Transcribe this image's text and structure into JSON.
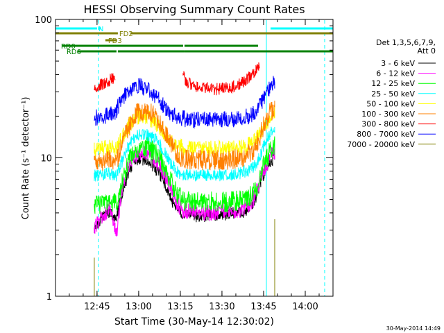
{
  "chart_data": {
    "type": "line",
    "title": "HESSI Observing Summary Count Rates",
    "xlabel": "Start Time (30-May-14 12:30:02)",
    "ylabel": "Count Rate (s⁻¹ detector⁻¹)",
    "ylim": [
      1,
      100
    ],
    "yscale": "log",
    "xlim": [
      "12:30:02",
      "14:10:00"
    ],
    "x_ticks": [
      "12:45",
      "13:00",
      "13:15",
      "13:30",
      "13:45",
      "14:00"
    ],
    "y_ticks": [
      "1",
      "10",
      "100"
    ],
    "legend_header": [
      "Det 1,3,5,6,7,9,",
      "Att 0"
    ],
    "legend_position": "right",
    "timestamp": "30-May-2014 14:49",
    "series": [
      {
        "name": "3 - 6 keV",
        "color": "#000000",
        "segments": [
          {
            "x": [
              "12:44:00",
              "12:46:30",
              "12:49:00",
              "12:52:00",
              "12:54:00",
              "12:56:00",
              "12:58:00",
              "13:00:00",
              "13:02:00",
              "13:04:00",
              "13:06:00",
              "13:08:00",
              "13:10:00",
              "13:12:00",
              "13:14:00",
              "13:16:00",
              "13:18:00",
              "13:20:00",
              "13:22:00",
              "13:24:00",
              "13:26:00",
              "13:28:00",
              "13:30:00",
              "13:32:00",
              "13:34:00",
              "13:36:00",
              "13:38:00",
              "13:40:00",
              "13:42:00",
              "13:43:00",
              "13:44:00",
              "13:45:00",
              "13:46:00",
              "13:47:00",
              "13:48:00",
              "13:49:00"
            ],
            "y": [
              3.0,
              3.6,
              4.0,
              3.7,
              5.5,
              7.5,
              9.2,
              9.9,
              9.7,
              9.3,
              8.4,
              7.5,
              6.2,
              4.9,
              4.3,
              4.0,
              3.9,
              3.8,
              3.8,
              3.8,
              3.8,
              3.9,
              3.9,
              3.9,
              4.0,
              4.0,
              4.1,
              4.4,
              5.0,
              5.8,
              6.8,
              7.5,
              8.3,
              9.0,
              9.6,
              10.2
            ]
          }
        ]
      },
      {
        "name": "6 - 12 keV",
        "color": "#ff00ff",
        "segments": [
          {
            "x": [
              "12:44:00",
              "12:47:00",
              "12:49:30",
              "12:52:00",
              "12:54:00",
              "12:56:00",
              "12:58:00",
              "13:00:00",
              "13:02:00",
              "13:04:00",
              "13:06:00",
              "13:08:00",
              "13:10:00",
              "13:12:00",
              "13:14:00",
              "13:16:00",
              "13:18:00",
              "13:20:00",
              "13:24:00",
              "13:28:00",
              "13:32:00",
              "13:36:00",
              "13:38:00",
              "13:40:00",
              "13:42:00",
              "13:43:00",
              "13:44:00",
              "13:45:00",
              "13:46:00",
              "13:47:00",
              "13:48:00",
              "13:49:00"
            ],
            "y": [
              3.2,
              3.8,
              4.3,
              2.8,
              6.0,
              8.5,
              10.2,
              11.0,
              10.9,
              10.5,
              9.6,
              8.5,
              7.1,
              5.7,
              4.6,
              4.2,
              4.1,
              4.0,
              4.0,
              4.0,
              4.1,
              4.2,
              4.3,
              4.6,
              5.3,
              6.2,
              7.3,
              8.2,
              9.0,
              9.8,
              10.5,
              11.2
            ]
          }
        ]
      },
      {
        "name": "12 - 25 keV",
        "color": "#00ff00",
        "segments": [
          {
            "x": [
              "12:44:00",
              "12:47:00",
              "12:49:30",
              "12:52:00",
              "12:54:00",
              "12:56:00",
              "12:58:00",
              "13:00:00",
              "13:02:00",
              "13:04:00",
              "13:06:00",
              "13:08:00",
              "13:10:00",
              "13:12:00",
              "13:14:00",
              "13:16:00",
              "13:20:00",
              "13:24:00",
              "13:28:00",
              "13:32:00",
              "13:36:00",
              "13:38:00",
              "13:40:00",
              "13:42:00",
              "13:43:00",
              "13:44:00",
              "13:45:00",
              "13:46:00",
              "13:47:00",
              "13:48:00",
              "13:49:00"
            ],
            "y": [
              4.6,
              4.7,
              4.8,
              4.7,
              6.5,
              9.0,
              11.0,
              12.1,
              12.2,
              11.7,
              10.8,
              9.5,
              8.0,
              6.5,
              5.4,
              4.9,
              4.8,
              4.8,
              4.8,
              4.8,
              4.9,
              5.0,
              5.2,
              5.8,
              6.6,
              7.7,
              8.8,
              9.9,
              10.8,
              11.6,
              12.4
            ]
          }
        ]
      },
      {
        "name": "25 - 50 keV",
        "color": "#00ffff",
        "segments": [
          {
            "x": [
              "12:44:00",
              "12:47:00",
              "12:49:30",
              "12:52:00",
              "12:54:00",
              "12:56:00",
              "12:58:00",
              "13:00:00",
              "13:02:00",
              "13:04:00",
              "13:06:00",
              "13:08:00",
              "13:10:00",
              "13:12:00",
              "13:14:00",
              "13:16:00",
              "13:20:00",
              "13:24:00",
              "13:28:00",
              "13:32:00",
              "13:36:00",
              "13:38:00",
              "13:40:00",
              "13:42:00",
              "13:43:00",
              "13:44:00",
              "13:45:00",
              "13:46:00",
              "13:47:00",
              "13:48:00",
              "13:49:00"
            ],
            "y": [
              7.4,
              7.6,
              7.7,
              7.4,
              9.4,
              11.8,
              13.8,
              14.8,
              14.9,
              14.4,
              13.5,
              12.1,
              10.4,
              8.8,
              7.9,
              7.6,
              7.5,
              7.5,
              7.5,
              7.5,
              7.7,
              7.9,
              8.2,
              8.9,
              9.7,
              10.8,
              12.2,
              13.6,
              14.6,
              15.6,
              16.8
            ]
          }
        ]
      },
      {
        "name": "50 - 100 keV",
        "color": "#ffff00",
        "segments": [
          {
            "x": [
              "12:44:00",
              "12:47:00",
              "12:49:30",
              "12:52:00",
              "12:54:00",
              "12:56:00",
              "12:58:00",
              "13:00:00",
              "13:02:00",
              "13:04:00",
              "13:06:00",
              "13:08:00",
              "13:10:00",
              "13:12:00",
              "13:14:00",
              "13:16:00",
              "13:20:00",
              "13:24:00",
              "13:28:00",
              "13:32:00",
              "13:36:00",
              "13:38:00",
              "13:40:00",
              "13:42:00",
              "13:43:00",
              "13:44:00",
              "13:45:00",
              "13:46:00",
              "13:47:00",
              "13:48:00",
              "13:49:00"
            ],
            "y": [
              11.3,
              11.6,
              11.9,
              11.5,
              13.8,
              16.5,
              18.7,
              19.8,
              19.8,
              19.2,
              18.1,
              16.5,
              14.7,
              13.1,
              12.1,
              11.8,
              11.6,
              11.6,
              11.6,
              11.6,
              11.8,
              12.1,
              12.4,
              13.2,
              14.2,
              15.3,
              16.6,
              17.9,
              19.1,
              20.3,
              21.8
            ]
          }
        ]
      },
      {
        "name": "100 - 300 keV",
        "color": "#ff8000",
        "segments": [
          {
            "x": [
              "12:44:00",
              "12:47:00",
              "12:49:30",
              "12:52:00",
              "12:54:00",
              "12:56:00",
              "12:58:00",
              "13:00:00",
              "13:02:00",
              "13:04:00",
              "13:06:00",
              "13:08:00",
              "13:10:00",
              "13:12:00",
              "13:14:00",
              "13:16:00",
              "13:20:00",
              "13:24:00",
              "13:28:00",
              "13:32:00",
              "13:36:00",
              "13:38:00",
              "13:40:00",
              "13:42:00",
              "13:43:00",
              "13:44:00",
              "13:45:00",
              "13:46:00",
              "13:47:00",
              "13:48:00",
              "13:49:00"
            ],
            "y": [
              9.2,
              9.4,
              9.7,
              9.5,
              12.5,
              16.0,
              19.5,
              21.5,
              22.0,
              21.2,
              19.7,
              17.5,
              14.8,
              12.4,
              10.6,
              9.9,
              9.7,
              9.6,
              9.6,
              9.7,
              9.9,
              10.2,
              10.8,
              11.9,
              13.4,
              15.0,
              17.0,
              19.0,
              20.7,
              22.2,
              24.0
            ]
          }
        ]
      },
      {
        "name": "300 - 800 keV",
        "color": "#ff0000",
        "segments": [
          {
            "x": [
              "12:44:00",
              "12:46:00",
              "12:48:00",
              "12:50:00",
              "12:51:30"
            ],
            "y": [
              33.0,
              33.5,
              34.5,
              37.0,
              38.0
            ]
          },
          {
            "x": [
              "13:16:00",
              "13:18:00",
              "13:20:00",
              "13:22:00",
              "13:24:00",
              "13:26:00",
              "13:28:00",
              "13:30:00",
              "13:32:00",
              "13:34:00",
              "13:36:00",
              "13:38:00",
              "13:40:00",
              "13:42:00",
              "13:43:30"
            ],
            "y": [
              39.0,
              34.5,
              32.5,
              31.8,
              31.5,
              31.4,
              31.4,
              31.6,
              32.0,
              32.8,
              34.0,
              36.0,
              38.5,
              42.0,
              46.0
            ]
          }
        ]
      },
      {
        "name": "800 - 7000 keV",
        "color": "#0000ff",
        "segments": [
          {
            "x": [
              "12:44:00",
              "12:46:00",
              "12:48:00",
              "12:50:00",
              "12:51:30",
              "12:53:00",
              "12:55:00",
              "12:57:00",
              "12:59:00",
              "13:00:00",
              "13:01:00",
              "13:03:00",
              "13:05:00",
              "13:07:00",
              "13:09:00",
              "13:11:00",
              "13:13:00",
              "13:15:00",
              "13:17:00",
              "13:20:00",
              "13:24:00",
              "13:28:00",
              "13:32:00",
              "13:36:00",
              "13:38:00",
              "13:40:00",
              "13:42:00",
              "13:43:00",
              "13:44:00",
              "13:45:00",
              "13:46:00",
              "13:47:00",
              "13:48:00",
              "13:49:00"
            ],
            "y": [
              19.5,
              19.8,
              20.2,
              20.8,
              21.0,
              24.5,
              28.0,
              31.0,
              32.5,
              33.0,
              32.8,
              31.5,
              29.5,
              27.0,
              24.0,
              21.5,
              20.2,
              19.5,
              19.0,
              18.8,
              18.8,
              18.8,
              18.9,
              19.1,
              19.5,
              20.2,
              21.5,
              23.0,
              25.0,
              27.0,
              29.0,
              31.0,
              33.0,
              35.5
            ]
          }
        ]
      },
      {
        "name": "7000 - 20000 keV",
        "color": "#808000",
        "segments": [
          {
            "x": [
              "12:44:00",
              "12:44:00"
            ],
            "y": [
              1.0,
              1.9
            ]
          },
          {
            "x": [
              "13:49:00",
              "13:49:00"
            ],
            "y": [
              1.0,
              3.6
            ]
          }
        ]
      }
    ],
    "flags": [
      {
        "name": "N",
        "color": "#00ffff",
        "label_at": "12:45:30",
        "bars": [
          [
            "12:30:02",
            "12:45:00"
          ],
          [
            "12:46:30",
            "12:45:30"
          ],
          [
            "13:47:30",
            "14:10:00"
          ]
        ]
      },
      {
        "name": "FD2",
        "color": "#808000",
        "label_at": "12:53:00",
        "bars": [
          [
            "12:30:02",
            "12:52:30"
          ],
          [
            "12:57:00",
            "14:10:00"
          ]
        ]
      },
      {
        "name": "FD3",
        "color": "#808000",
        "label_at": "12:49:00",
        "bars": [
          [
            "12:48:00",
            "12:52:00"
          ]
        ]
      },
      {
        "name": "RD0",
        "color": "#008000",
        "label_at": "12:32:00",
        "bars": [
          [
            "12:32:30",
            "12:52:00"
          ],
          [
            "12:51:00",
            "13:16:00"
          ],
          [
            "13:16:30",
            "13:43:00"
          ]
        ]
      },
      {
        "name": "RD6",
        "color": "#008000",
        "label_at": "12:34:00",
        "bars": [
          [
            "12:38:00",
            "12:52:00"
          ],
          [
            "12:52:30",
            "13:16:30"
          ],
          [
            "13:16:30",
            "13:43:30"
          ],
          [
            "13:43:30",
            "14:10:00"
          ]
        ]
      }
    ],
    "vlines": [
      {
        "x": "12:30:02",
        "color": "#00ffff",
        "style": "solid"
      },
      {
        "x": "12:45:30",
        "color": "#00ffff",
        "style": "dashed"
      },
      {
        "x": "13:46:00",
        "color": "#00ffff",
        "style": "solid"
      },
      {
        "x": "14:07:00",
        "color": "#00ffff",
        "style": "dashed"
      }
    ]
  }
}
